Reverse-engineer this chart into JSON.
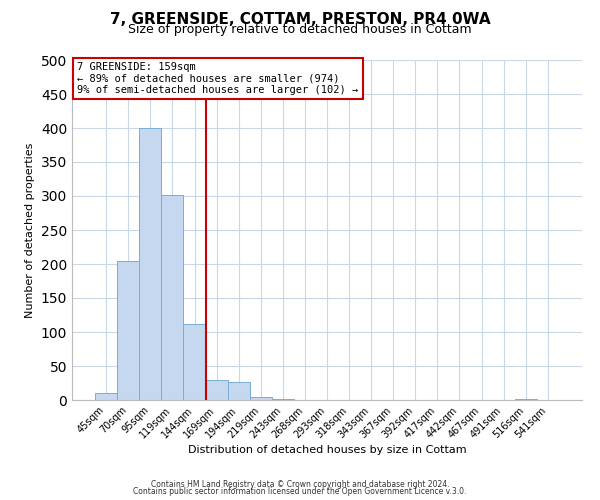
{
  "title": "7, GREENSIDE, COTTAM, PRESTON, PR4 0WA",
  "subtitle": "Size of property relative to detached houses in Cottam",
  "bar_labels": [
    "45sqm",
    "70sqm",
    "95sqm",
    "119sqm",
    "144sqm",
    "169sqm",
    "194sqm",
    "219sqm",
    "243sqm",
    "268sqm",
    "293sqm",
    "318sqm",
    "343sqm",
    "367sqm",
    "392sqm",
    "417sqm",
    "442sqm",
    "467sqm",
    "491sqm",
    "516sqm",
    "541sqm"
  ],
  "bar_values": [
    10,
    205,
    400,
    302,
    112,
    30,
    27,
    5,
    2,
    0,
    0,
    0,
    0,
    0,
    0,
    0,
    0,
    0,
    0,
    2,
    0
  ],
  "bar_color": "#c5d8f0",
  "bar_edge_color": "#7aaed4",
  "vline_color": "#cc0000",
  "vline_x_index": 4.5,
  "ylabel": "Number of detached properties",
  "xlabel": "Distribution of detached houses by size in Cottam",
  "ylim": [
    0,
    500
  ],
  "yticks": [
    0,
    50,
    100,
    150,
    200,
    250,
    300,
    350,
    400,
    450,
    500
  ],
  "annotation_title": "7 GREENSIDE: 159sqm",
  "annotation_line1": "← 89% of detached houses are smaller (974)",
  "annotation_line2": "9% of semi-detached houses are larger (102) →",
  "footer1": "Contains HM Land Registry data © Crown copyright and database right 2024.",
  "footer2": "Contains public sector information licensed under the Open Government Licence v.3.0.",
  "background_color": "#ffffff",
  "grid_color": "#c8d8e8",
  "title_fontsize": 11,
  "subtitle_fontsize": 9,
  "tick_fontsize": 7,
  "label_fontsize": 8,
  "footer_fontsize": 5.5
}
